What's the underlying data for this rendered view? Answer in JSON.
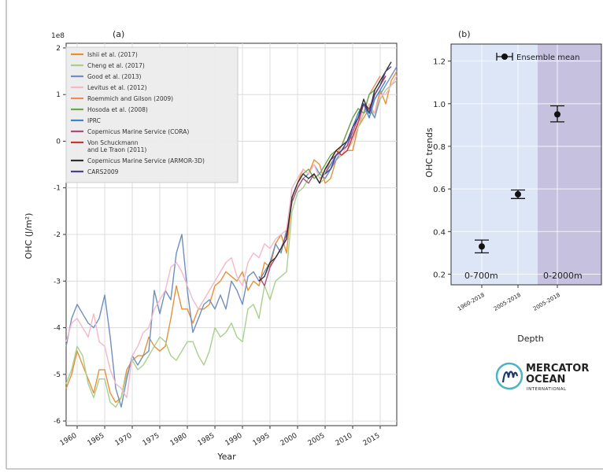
{
  "chart_data": [
    {
      "type": "line",
      "panel_label": "(a)",
      "title": "",
      "xlabel": "Year",
      "ylabel": "OHC (J/m²)",
      "y_multiplier": "1e8",
      "xlim": [
        1958,
        2018
      ],
      "ylim": [
        -6.1,
        2.1
      ],
      "x_ticks": [
        1960,
        1965,
        1970,
        1975,
        1980,
        1985,
        1990,
        1995,
        2000,
        2005,
        2010,
        2015
      ],
      "y_ticks": [
        -6,
        -5,
        -4,
        -3,
        -2,
        -1,
        0,
        1,
        2
      ],
      "grid": true,
      "legend_position": "upper-left",
      "series": [
        {
          "name": "Ishii et al. (2017)",
          "color": "#e69138",
          "start_year": 1958,
          "values": [
            -5.3,
            -5.0,
            -4.5,
            -4.8,
            -5.1,
            -5.4,
            -4.9,
            -4.9,
            -5.4,
            -5.6,
            -5.5,
            -4.9,
            -4.7,
            -4.6,
            -4.6,
            -4.2,
            -4.4,
            -4.5,
            -4.4,
            -3.8,
            -3.1,
            -3.6,
            -3.6,
            -3.9,
            -3.6,
            -3.6,
            -3.5,
            -3.1,
            -3.0,
            -2.8,
            -2.9,
            -3.0,
            -2.8,
            -3.2,
            -3.0,
            -3.1,
            -2.6,
            -2.7,
            -2.2,
            -2.0,
            -2.4,
            -1.2,
            -0.9,
            -0.6,
            -0.7,
            -0.4,
            -0.5,
            -0.9,
            -0.8,
            -0.4,
            -0.3,
            -0.2,
            -0.2,
            0.3,
            0.5,
            0.7,
            0.6,
            1.1,
            0.8,
            1.3,
            1.5
          ]
        },
        {
          "name": "Cheng et al. (2017)",
          "color": "#a8d08d",
          "start_year": 1958,
          "values": [
            -5.2,
            -4.9,
            -4.4,
            -4.6,
            -5.2,
            -5.5,
            -5.1,
            -5.1,
            -5.6,
            -5.7,
            -5.5,
            -5.0,
            -4.7,
            -4.9,
            -4.8,
            -4.6,
            -4.4,
            -4.2,
            -4.3,
            -4.6,
            -4.7,
            -4.5,
            -4.3,
            -4.3,
            -4.6,
            -4.8,
            -4.5,
            -4.0,
            -4.2,
            -4.1,
            -3.9,
            -4.2,
            -4.3,
            -3.6,
            -3.5,
            -3.8,
            -3.1,
            -3.4,
            -3.0,
            -2.9,
            -2.8,
            -1.5,
            -1.1,
            -1.0,
            -0.8,
            -0.7,
            -0.9,
            -0.8,
            -0.6,
            -0.4,
            -0.3,
            -0.2,
            0.0,
            0.3,
            0.6,
            0.8,
            0.5,
            0.9,
            1.1,
            1.2,
            1.3
          ]
        },
        {
          "name": "Good et al. (2013)",
          "color": "#6f8fc0",
          "start_year": 1958,
          "values": [
            -4.4,
            -3.8,
            -3.5,
            -3.7,
            -3.9,
            -4.0,
            -3.8,
            -3.3,
            -4.2,
            -5.3,
            -5.7,
            -5.1,
            -4.6,
            -4.8,
            -4.6,
            -4.5,
            -3.2,
            -3.7,
            -3.2,
            -3.4,
            -2.4,
            -2.0,
            -3.2,
            -4.1,
            -3.8,
            -3.5,
            -3.4,
            -3.6,
            -3.3,
            -3.6,
            -3.0,
            -3.2,
            -3.5,
            -2.9,
            -2.8,
            -3.0,
            -2.8,
            -2.6,
            -2.2,
            -2.4,
            -1.9,
            -1.3,
            -1.0,
            -0.8,
            -0.7,
            -0.5,
            -0.7,
            -0.8,
            -0.6,
            -0.4,
            -0.2,
            0.0,
            0.1,
            0.4,
            0.6,
            0.7,
            0.5,
            1.0,
            1.2,
            1.4,
            1.6
          ]
        },
        {
          "name": "Levitus et al. (2012)",
          "color": "#f4b8c8",
          "start_year": 1958,
          "values": [
            -4.3,
            -3.9,
            -3.8,
            -4.0,
            -4.2,
            -3.7,
            -4.3,
            -4.4,
            -4.9,
            -5.2,
            -5.3,
            -5.5,
            -4.6,
            -4.4,
            -4.1,
            -4.0,
            -3.6,
            -3.4,
            -3.2,
            -2.7,
            -2.6,
            -2.8,
            -3.1,
            -3.4,
            -3.6,
            -3.4,
            -3.2,
            -3.0,
            -2.8,
            -2.6,
            -2.5,
            -2.9,
            -3.1,
            -2.6,
            -2.4,
            -2.5,
            -2.2,
            -2.3,
            -2.1,
            -2.0,
            -1.9,
            -1.0,
            -0.8,
            -0.6,
            -0.7,
            -0.5,
            -0.8,
            -0.7,
            -0.5,
            -0.3,
            -0.3,
            -0.1,
            0.0,
            0.4,
            0.6,
            0.8,
            0.6,
            1.0,
            1.0,
            1.2,
            1.4
          ]
        },
        {
          "name": "Roemmich and Gilson (2009)",
          "color": "#f08a5d",
          "start_year": 2004,
          "values": [
            -0.8,
            -0.7,
            -0.4,
            -0.3,
            -0.1,
            0.2,
            0.5,
            0.7,
            0.6,
            1.0,
            1.2,
            1.4
          ]
        },
        {
          "name": "Hosoda et al. (2008)",
          "color": "#6aa84f",
          "start_year": 2001,
          "values": [
            -0.7,
            -0.6,
            -0.8,
            -0.7,
            -0.5,
            -0.3,
            -0.2,
            -0.1,
            0.2,
            0.5,
            0.7,
            0.6,
            1.0,
            1.1,
            1.3
          ]
        },
        {
          "name": "IPRC",
          "color": "#3d85c6",
          "start_year": 2005,
          "values": [
            -0.7,
            -0.5,
            -0.3,
            -0.2,
            -0.1,
            0.3,
            0.6,
            0.8,
            0.5,
            0.9,
            1.1,
            1.3
          ]
        },
        {
          "name": "Copernicus Marine Service (CORA)",
          "color": "#a64d79",
          "start_year": 1993,
          "values": [
            -2.9,
            -3.1,
            -2.7,
            -2.5,
            -2.3,
            -2.0,
            -1.3,
            -1.0,
            -0.8,
            -0.9,
            -0.7,
            -0.9,
            -0.6,
            -0.4,
            -0.3,
            -0.2,
            -0.1,
            0.2,
            0.5,
            0.8,
            0.6,
            1.0,
            1.2,
            1.4
          ]
        },
        {
          "name": "Von Schuckmann and Le Traon (2011)",
          "color": "#cc3333",
          "start_year": 2005,
          "values": [
            -0.6,
            -0.4,
            -0.2,
            -0.3,
            -0.2,
            0.1,
            0.4,
            0.8,
            0.7,
            1.0,
            1.2,
            1.4
          ]
        },
        {
          "name": "Copernicus Marine Service (ARMOR-3D)",
          "color": "#2e2e2e",
          "start_year": 1993,
          "values": [
            -3.0,
            -2.9,
            -2.6,
            -2.5,
            -2.3,
            -2.1,
            -1.2,
            -0.9,
            -0.7,
            -0.8,
            -0.7,
            -0.9,
            -0.6,
            -0.4,
            -0.2,
            -0.1,
            0.0,
            0.3,
            0.5,
            0.9,
            0.6,
            1.1,
            1.3,
            1.5,
            1.7
          ]
        },
        {
          "name": "CARS2009",
          "color": "#4b3f8f",
          "start_year": 2005,
          "values": [
            -0.7,
            -0.6,
            -0.3,
            -0.2,
            0.0,
            0.3,
            0.5,
            0.8,
            0.6,
            1.0,
            1.2,
            1.5,
            1.6
          ]
        }
      ]
    },
    {
      "type": "scatter",
      "panel_label": "(b)",
      "title": "",
      "xlabel": "Depth",
      "ylabel": "OHC trends",
      "ylim": [
        0.15,
        1.28
      ],
      "y_ticks": [
        0.2,
        0.4,
        0.6,
        0.8,
        1.0,
        1.2
      ],
      "categories": [
        "1960-2018",
        "2005-2018",
        "2005-2018"
      ],
      "values": [
        0.33,
        0.575,
        0.95
      ],
      "error_low": [
        0.3,
        0.555,
        0.915
      ],
      "error_high": [
        0.36,
        0.595,
        0.99
      ],
      "series_name": "Ensemble mean",
      "legend_position": "top-right",
      "regions": [
        {
          "label": "0-700m",
          "color": "#dde6f7"
        },
        {
          "label": "0-2000m",
          "color": "#c6c1df"
        }
      ]
    }
  ],
  "logo": {
    "line1": "MERCATOR",
    "line2": "OCEAN",
    "line3": "INTERNATIONAL",
    "color": "#1f3a6b",
    "accent": "#4fb3c6"
  }
}
